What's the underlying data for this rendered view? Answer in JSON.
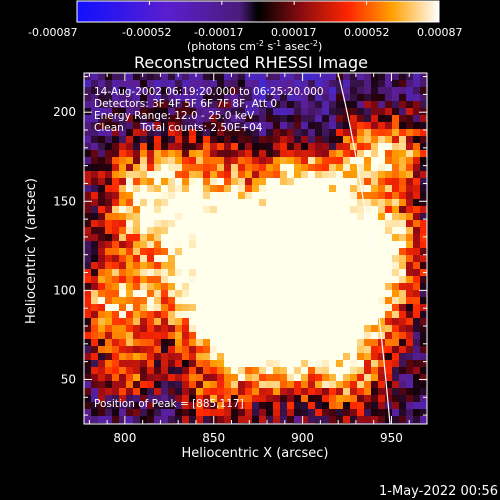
{
  "colorbar": {
    "ticks": [
      "-0.00087",
      "-0.00052",
      "-0.00017",
      "0.00017",
      "0.00052",
      "0.00087"
    ],
    "units_main": "(photons cm",
    "units_exp1": "-2",
    "units_mid": " s",
    "units_exp2": "-1",
    "units_mid2": " asec",
    "units_exp3": "-2",
    "units_end": ")"
  },
  "title": "Reconstructed RHESSI Image",
  "info": {
    "time": "14-Aug-2002 06:19:20.000 to 06:25:20.000",
    "detectors": "Detectors: 3F 4F 5F 6F 7F 8F, Att 0",
    "energy": "Energy Range: 12.0 - 25.0 keV",
    "clean": "Clean     Total counts: 2.50E+04",
    "peak": "Position of Peak = [885,117]"
  },
  "x_axis": {
    "label": "Heliocentric X (arcsec)",
    "ticks": [
      "800",
      "850",
      "900",
      "950"
    ],
    "tick_values": [
      800,
      850,
      900,
      950
    ],
    "range": [
      777,
      970
    ]
  },
  "y_axis": {
    "label": "Heliocentric Y (arcsec)",
    "ticks": [
      "50",
      "100",
      "150",
      "200"
    ],
    "tick_values": [
      50,
      100,
      150,
      200
    ],
    "range": [
      25,
      222
    ]
  },
  "timestamp": "1-May-2022 00:56"
}
